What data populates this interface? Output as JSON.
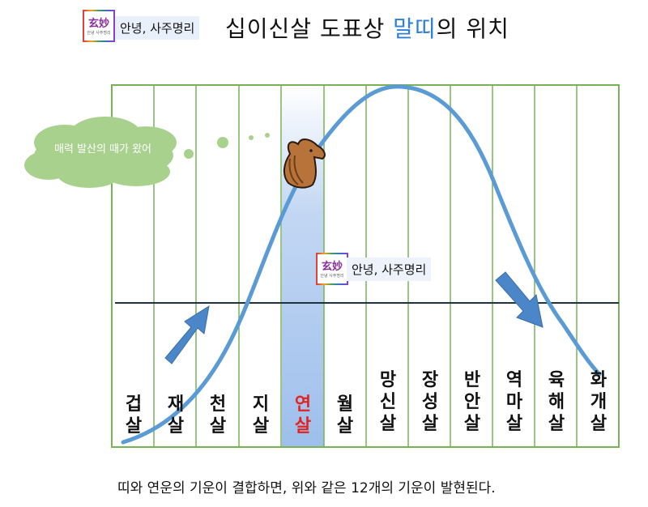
{
  "header": {
    "logo_hanja": "玄妙",
    "logo_small": "안녕 사주명리",
    "brand": "안녕, 사주명리",
    "title_prefix": "십이신살 도표상 ",
    "title_highlight": "말띠",
    "title_suffix": "의 위치"
  },
  "cloud": {
    "text": "매력 발산의 때가 왔어"
  },
  "watermark": {
    "logo_hanja": "玄妙",
    "logo_small": "안녕 사주명리",
    "brand": "안녕, 사주명리"
  },
  "columns": [
    {
      "line1": "겁",
      "line2": "살",
      "highlight": false
    },
    {
      "line1": "재",
      "line2": "살",
      "highlight": false
    },
    {
      "line1": "천",
      "line2": "살",
      "highlight": false
    },
    {
      "line1": "지",
      "line2": "살",
      "highlight": false
    },
    {
      "line1": "연",
      "line2": "살",
      "highlight": true
    },
    {
      "line1": "월",
      "line2": "살",
      "highlight": false
    },
    {
      "line1": "망",
      "line2": "신",
      "line3": "살",
      "highlight": false
    },
    {
      "line1": "장",
      "line2": "성",
      "line3": "살",
      "highlight": false
    },
    {
      "line1": "반",
      "line2": "안",
      "line3": "살",
      "highlight": false
    },
    {
      "line1": "역",
      "line2": "마",
      "line3": "살",
      "highlight": false
    },
    {
      "line1": "육",
      "line2": "해",
      "line3": "살",
      "highlight": false
    },
    {
      "line1": "화",
      "line2": "개",
      "line3": "살",
      "highlight": false
    }
  ],
  "caption": "띠와 연운의 기운이 결합하면, 위와 같은 12개의 기운이 발현된다.",
  "colors": {
    "grid": "#77b255",
    "curve": "#5b9bd5",
    "highlight_col": "#a9c6ee",
    "cloud": "#a9d18e",
    "arrow": "#4a86c8",
    "midline": "#1f3240",
    "accent_red": "#e3231f",
    "title_blue": "#2f7fd8"
  }
}
